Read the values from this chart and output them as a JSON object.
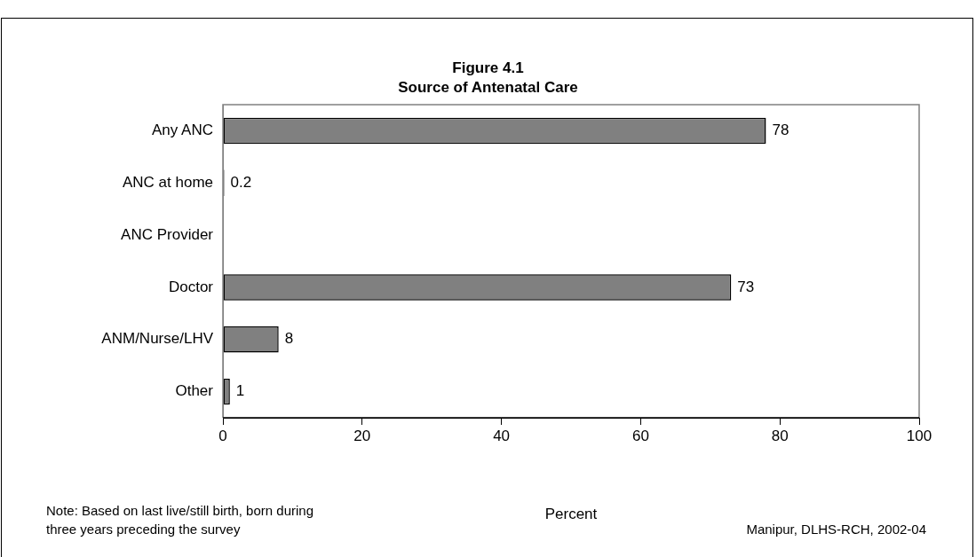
{
  "chart_data": {
    "type": "bar",
    "orientation": "horizontal",
    "title": "Figure 4.1",
    "subtitle": "Source of Antenatal Care",
    "categories": [
      "Any ANC",
      "ANC at home",
      "ANC Provider",
      "Doctor",
      "ANM/Nurse/LHV",
      "Other"
    ],
    "values": [
      78,
      0.2,
      null,
      73,
      8,
      1
    ],
    "color": "#808080",
    "data_labels": true,
    "xlim": [
      0,
      100
    ],
    "xticks": [
      0,
      20,
      40,
      60,
      80,
      100
    ],
    "xlabel": "Percent",
    "grid": false,
    "legend": false,
    "annotations": [
      "Note: Based on last live/still birth, born during\nthree years preceding the survey",
      "Manipur, DLHS-RCH, 2002-04"
    ]
  }
}
